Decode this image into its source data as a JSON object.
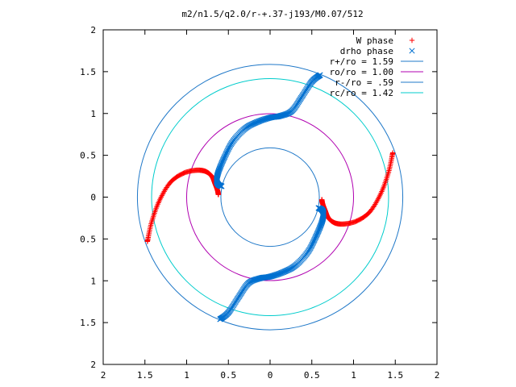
{
  "chart_data": {
    "type": "scatter",
    "title": "m2/n1.5/q2.0/r-+.37-j193/M0.07/512",
    "xlim": [
      -2,
      2
    ],
    "ylim": [
      -2,
      2
    ],
    "x_tick_labels": [
      "2",
      "1.5",
      "1",
      "0.5",
      "0",
      "0.5",
      "1",
      "1.5",
      "2"
    ],
    "y_tick_labels": [
      "2",
      "1.5",
      "1",
      "0.5",
      "0",
      "0.5",
      "1",
      "1.5",
      "2"
    ],
    "grid": false,
    "legend_position": "top-right",
    "series": [
      {
        "name": "W phase",
        "kind": "points",
        "marker": "+",
        "color": "#ff0000",
        "arms": [
          {
            "x": [
              -1.47,
              -1.42,
              -1.33,
              -1.2,
              -1.05,
              -0.9,
              -0.78,
              -0.7,
              -0.66,
              -0.63,
              -0.62
            ],
            "y": [
              -0.53,
              -0.3,
              -0.05,
              0.17,
              0.28,
              0.32,
              0.31,
              0.25,
              0.16,
              0.08,
              0.03
            ]
          },
          {
            "x": [
              1.47,
              1.42,
              1.33,
              1.2,
              1.05,
              0.9,
              0.78,
              0.7,
              0.66,
              0.63,
              0.62
            ],
            "y": [
              0.53,
              0.3,
              0.05,
              -0.17,
              -0.28,
              -0.32,
              -0.31,
              -0.25,
              -0.16,
              -0.08,
              -0.03
            ]
          }
        ]
      },
      {
        "name": "drho phase",
        "kind": "points",
        "marker": "x",
        "color": "#0070d0",
        "arms": [
          {
            "x": [
              0.6,
              0.5,
              0.38,
              0.26,
              0.12,
              0.0,
              -0.15,
              -0.3,
              -0.45,
              -0.55,
              -0.62,
              -0.64,
              -0.62,
              -0.58
            ],
            "y": [
              1.46,
              1.38,
              1.2,
              1.03,
              0.97,
              0.95,
              0.9,
              0.82,
              0.66,
              0.47,
              0.3,
              0.2,
              0.15,
              0.13
            ]
          },
          {
            "x": [
              -0.6,
              -0.5,
              -0.38,
              -0.26,
              -0.12,
              0.0,
              0.15,
              0.3,
              0.45,
              0.55,
              0.62,
              0.64,
              0.62,
              0.58
            ],
            "y": [
              -1.46,
              -1.38,
              -1.2,
              -1.03,
              -0.97,
              -0.95,
              -0.9,
              -0.82,
              -0.66,
              -0.47,
              -0.3,
              -0.2,
              -0.15,
              -0.13
            ]
          }
        ]
      },
      {
        "name": "r+/ro = 1.59",
        "kind": "circle",
        "radius": 1.59,
        "color": "#1f78c8"
      },
      {
        "name": "ro/ro = 1.00",
        "kind": "circle",
        "radius": 1.0,
        "color": "#b000b0"
      },
      {
        "name": "r-/ro = .59",
        "kind": "circle",
        "radius": 0.59,
        "color": "#1f78c8"
      },
      {
        "name": "rc/ro = 1.42",
        "kind": "circle",
        "radius": 1.42,
        "color": "#00cccc"
      }
    ]
  }
}
